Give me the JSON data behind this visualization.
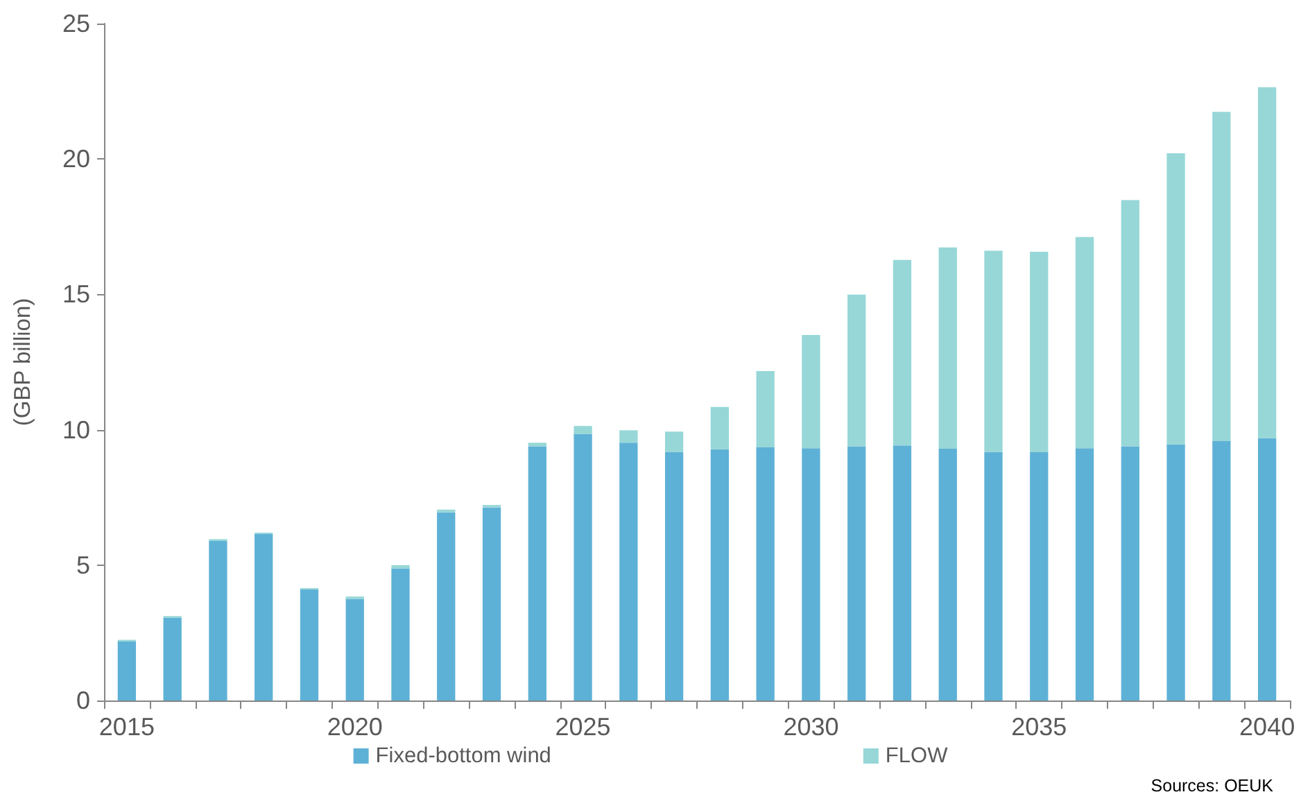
{
  "chart_data": {
    "type": "bar",
    "stacked": true,
    "ylabel": "(GBP billion)",
    "categories": [
      "2015",
      null,
      null,
      null,
      null,
      "2020",
      null,
      null,
      null,
      null,
      "2025",
      null,
      null,
      null,
      null,
      "2030",
      null,
      null,
      null,
      null,
      "2035",
      null,
      null,
      null,
      null,
      "2040"
    ],
    "series": [
      {
        "name": "Fixed-bottom wind",
        "color": "#5eb1d6",
        "values": [
          2.19,
          3.06,
          5.89,
          6.16,
          4.1,
          3.75,
          4.88,
          6.95,
          7.13,
          9.39,
          9.85,
          9.52,
          9.18,
          9.28,
          9.35,
          9.32,
          9.39,
          9.42,
          9.3,
          9.18,
          9.17,
          9.32,
          9.39,
          9.46,
          9.58,
          9.69
        ]
      },
      {
        "name": "FLOW",
        "color": "#97d7d7",
        "values": [
          0.05,
          0.06,
          0.07,
          0.04,
          0.05,
          0.09,
          0.12,
          0.1,
          0.09,
          0.13,
          0.29,
          0.46,
          0.75,
          1.56,
          2.82,
          4.18,
          5.6,
          6.85,
          7.43,
          7.43,
          7.4,
          7.8,
          9.09,
          10.75,
          12.16,
          12.96
        ]
      }
    ],
    "ylim": [
      0,
      25
    ],
    "yticks": [
      0,
      5,
      10,
      15,
      20,
      25
    ],
    "grid": false,
    "legend": "bottom",
    "annotations": [
      "Sources: OEUK"
    ]
  }
}
